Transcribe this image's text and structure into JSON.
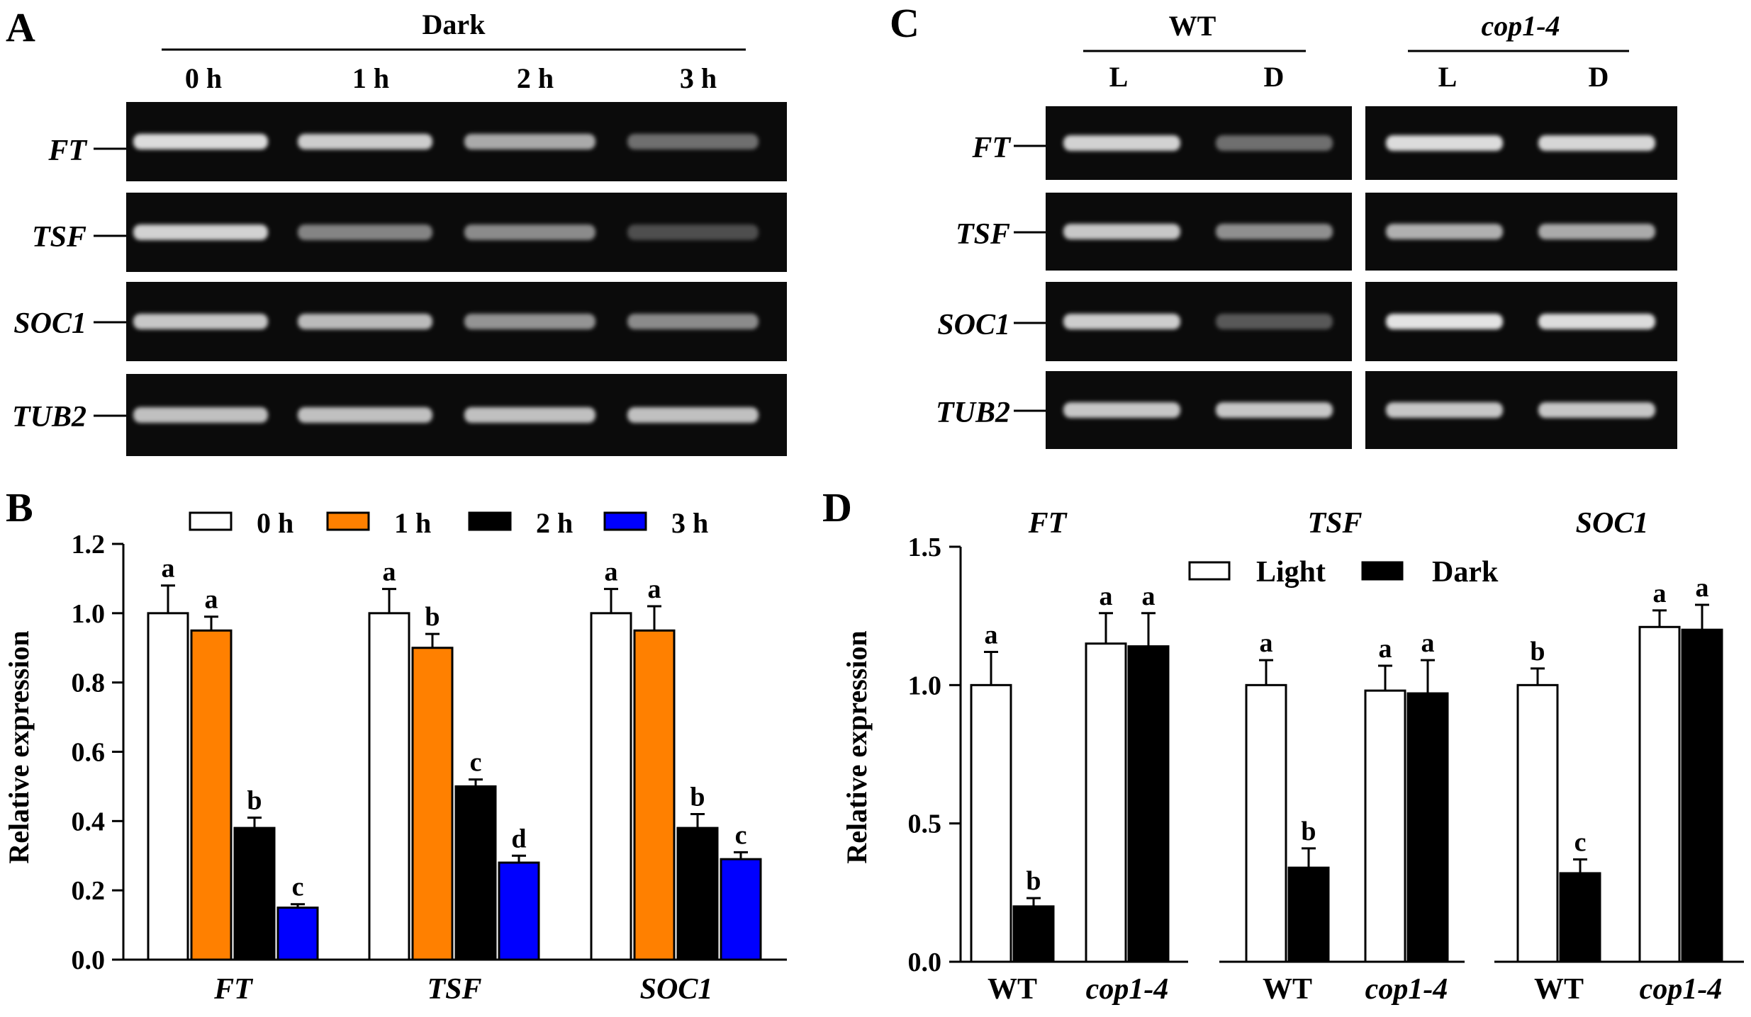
{
  "colors": {
    "t0": "#ffffff",
    "t1": "#ff8000",
    "t2": "#000000",
    "t3": "#0000ff",
    "light": "#ffffff",
    "dark": "#000000",
    "gel_bg": "#0b0b0b",
    "band": "#e8e8e8"
  },
  "panel_a": {
    "letter": "A",
    "treatment": "Dark",
    "lanes": [
      "0 h",
      "1 h",
      "2 h",
      "3 h"
    ],
    "genes": [
      {
        "name": "FT",
        "intensity": [
          0.95,
          0.88,
          0.72,
          0.45
        ]
      },
      {
        "name": "TSF",
        "intensity": [
          0.9,
          0.55,
          0.58,
          0.3
        ]
      },
      {
        "name": "SOC1",
        "intensity": [
          0.85,
          0.8,
          0.62,
          0.58
        ]
      },
      {
        "name": "TUB2",
        "intensity": [
          0.82,
          0.82,
          0.82,
          0.82
        ]
      }
    ]
  },
  "panel_c": {
    "letter": "C",
    "groups": [
      "WT",
      "cop1-4"
    ],
    "lanes": [
      "L",
      "D",
      "L",
      "D"
    ],
    "genes": [
      {
        "name": "FT",
        "intensity": [
          0.9,
          0.45,
          0.95,
          0.92
        ]
      },
      {
        "name": "TSF",
        "intensity": [
          0.85,
          0.6,
          0.75,
          0.72
        ]
      },
      {
        "name": "SOC1",
        "intensity": [
          0.88,
          0.35,
          0.98,
          0.95
        ]
      },
      {
        "name": "TUB2",
        "intensity": [
          0.85,
          0.85,
          0.85,
          0.85
        ]
      }
    ]
  },
  "chart_data": [
    {
      "panel": "B",
      "type": "bar",
      "ylabel": "Relative expression",
      "ylim": [
        0,
        1.2
      ],
      "yticks": [
        "0.0",
        "0.2",
        "0.4",
        "0.6",
        "0.8",
        "1.0",
        "1.2"
      ],
      "categories": [
        "FT",
        "TSF",
        "SOC1"
      ],
      "series": [
        {
          "name": "0 h",
          "values": [
            1.0,
            1.0,
            1.0
          ],
          "errors": [
            0.08,
            0.07,
            0.07
          ],
          "letters": [
            "a",
            "a",
            "a"
          ]
        },
        {
          "name": "1 h",
          "values": [
            0.95,
            0.9,
            0.95
          ],
          "errors": [
            0.04,
            0.04,
            0.07
          ],
          "letters": [
            "a",
            "b",
            "a"
          ]
        },
        {
          "name": "2 h",
          "values": [
            0.38,
            0.5,
            0.38
          ],
          "errors": [
            0.03,
            0.02,
            0.04
          ],
          "letters": [
            "b",
            "c",
            "b"
          ]
        },
        {
          "name": "3 h",
          "values": [
            0.15,
            0.28,
            0.29
          ],
          "errors": [
            0.01,
            0.02,
            0.02
          ],
          "letters": [
            "c",
            "d",
            "c"
          ]
        }
      ]
    },
    {
      "panel": "D",
      "type": "bar",
      "ylabel": "Relative expression",
      "ylim": [
        0,
        1.5
      ],
      "yticks": [
        "0.0",
        "0.5",
        "1.0",
        "1.5"
      ],
      "legend": [
        "Light",
        "Dark"
      ],
      "subplots": [
        {
          "gene": "FT",
          "genotypes": [
            "WT",
            "cop1-4"
          ],
          "light": [
            1.0,
            1.15
          ],
          "light_err": [
            0.12,
            0.11
          ],
          "light_letters": [
            "a",
            "a"
          ],
          "dark": [
            0.2,
            1.14
          ],
          "dark_err": [
            0.03,
            0.12
          ],
          "dark_letters": [
            "b",
            "a"
          ]
        },
        {
          "gene": "TSF",
          "genotypes": [
            "WT",
            "cop1-4"
          ],
          "light": [
            1.0,
            0.98
          ],
          "light_err": [
            0.09,
            0.09
          ],
          "light_letters": [
            "a",
            "a"
          ],
          "dark": [
            0.34,
            0.97
          ],
          "dark_err": [
            0.07,
            0.12
          ],
          "dark_letters": [
            "b",
            "a"
          ]
        },
        {
          "gene": "SOC1",
          "genotypes": [
            "WT",
            "cop1-4"
          ],
          "light": [
            1.0,
            1.21
          ],
          "light_err": [
            0.06,
            0.06
          ],
          "light_letters": [
            "b",
            "a"
          ],
          "dark": [
            0.32,
            1.2
          ],
          "dark_err": [
            0.05,
            0.09
          ],
          "dark_letters": [
            "c",
            "a"
          ]
        }
      ]
    }
  ]
}
